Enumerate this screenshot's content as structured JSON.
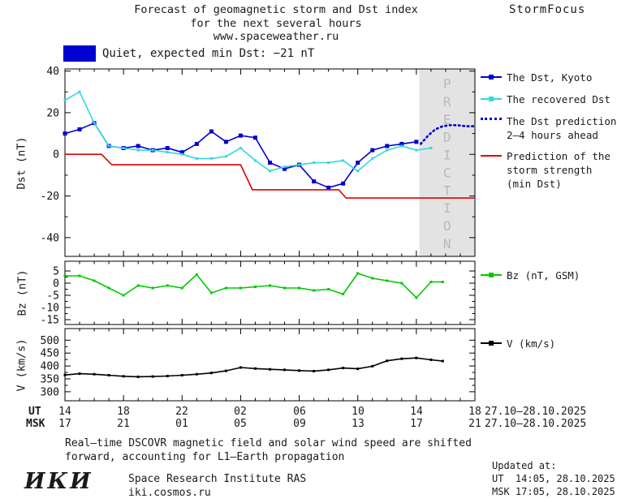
{
  "header": {
    "title_line1": "Forecast of geomagnetic storm and Dst index",
    "title_line2": "for the next several hours",
    "title_line3": "www.spaceweather.ru",
    "brand": "StormFocus"
  },
  "status": {
    "label": "Quiet, expected min Dst: −21 nT",
    "swatch_color": "#0000d0"
  },
  "legend": {
    "dst_kyoto": "The Dst, Kyoto",
    "recovered": "The recovered Dst",
    "prediction_l1": "The Dst prediction",
    "prediction_l2": "2–4 hours ahead",
    "storm_l1": "Prediction of the",
    "storm_l2": "storm strength",
    "storm_l3": "(min Dst)",
    "bz": "Bz (nT, GSM)",
    "v": "V (km/s)"
  },
  "axes": {
    "ut_label": "UT",
    "msk_label": "MSK",
    "ut_ticks": [
      "14",
      "18",
      "22",
      "02",
      "06",
      "10",
      "14",
      "18"
    ],
    "msk_ticks": [
      "17",
      "21",
      "01",
      "05",
      "09",
      "13",
      "17",
      "21"
    ],
    "ut_daterange": "27.10–28.10.2025",
    "msk_daterange": "27.10–28.10.2025",
    "dst_ylabel": "Dst (nT)",
    "bz_ylabel": "Bz (nT)",
    "v_ylabel": "V (km/s)",
    "prediction_watermark": "PREDICTION"
  },
  "footer": {
    "note_line1": "Real–time DSCOVR magnetic field and solar wind speed are shifted",
    "note_line2": "forward, accounting for L1–Earth propagation",
    "updated_label": "Updated at:",
    "updated_ut": "UT  14:05, 28.10.2025",
    "updated_msk": "MSK 17:05, 28.10.2025",
    "logo": "ИКИ",
    "institute": "Space Research Institute RAS",
    "site": "iki.cosmos.ru"
  },
  "chart_data": [
    {
      "type": "line",
      "panel": "dst",
      "ylabel": "Dst (nT)",
      "x_unit": "hours since 27.10.2025 14:00 UT",
      "xlim": [
        0,
        28
      ],
      "ylim": [
        -49,
        41
      ],
      "yticks": [
        40,
        20,
        0,
        -20,
        -40
      ],
      "xticks_hours": [
        0,
        4,
        8,
        12,
        16,
        20,
        24,
        28
      ],
      "prediction_region_x": [
        24.2,
        28
      ],
      "series": [
        {
          "id": "dst-kyoto",
          "name": "The Dst, Kyoto",
          "color": "#0000d0",
          "marker": "square",
          "marker_size": 5,
          "x": [
            0,
            1,
            2,
            3,
            4,
            5,
            6,
            7,
            8,
            9,
            10,
            11,
            12,
            13,
            14,
            15,
            16,
            17,
            18,
            19,
            20,
            21,
            22,
            23,
            24
          ],
          "values": [
            10,
            12,
            15,
            4,
            3,
            4,
            2,
            3,
            1,
            5,
            11,
            6,
            9,
            8,
            -4,
            -7,
            -5,
            -13,
            -16,
            -14,
            -4,
            2,
            4,
            5,
            6
          ]
        },
        {
          "id": "dst-recovered",
          "name": "The recovered Dst",
          "color": "#35d5e5",
          "marker": "square",
          "marker_size": 3,
          "x": [
            0,
            1,
            2,
            3,
            4,
            5,
            6,
            7,
            8,
            9,
            10,
            11,
            12,
            13,
            14,
            15,
            16,
            17,
            18,
            19,
            20,
            21,
            22,
            23,
            24,
            25
          ],
          "values": [
            26,
            30,
            15,
            4,
            3,
            2,
            2,
            1,
            0,
            -2,
            -2,
            -1,
            3,
            -3,
            -8,
            -6,
            -5,
            -4,
            -4,
            -3,
            -8,
            -2,
            2,
            4,
            2,
            3
          ]
        },
        {
          "id": "dst-prediction",
          "name": "The Dst prediction 2–4 hours ahead",
          "color": "#0000d0",
          "style": "dotted",
          "x": [
            24.3,
            24.8,
            25.3,
            25.8,
            26.3,
            26.8,
            27.4,
            28
          ],
          "values": [
            5,
            9,
            12,
            13.5,
            14,
            14,
            13.5,
            13.5
          ]
        },
        {
          "id": "storm-strength",
          "name": "Prediction of the storm strength (min Dst)",
          "color": "#e00000",
          "x": [
            0,
            2.5,
            3.2,
            12,
            12.8,
            18.7,
            19.2,
            28
          ],
          "values": [
            0,
            0,
            -5,
            -5,
            -17,
            -17,
            -21,
            -21
          ]
        }
      ]
    },
    {
      "type": "line",
      "panel": "bz",
      "ylabel": "Bz (nT)",
      "xlim": [
        0,
        28
      ],
      "ylim": [
        -17,
        9
      ],
      "yticks": [
        5,
        0,
        -5,
        -10,
        -15
      ],
      "series": [
        {
          "id": "bz-gsm",
          "name": "Bz (nT, GSM)",
          "color": "#00c800",
          "marker": "square",
          "marker_size": 3,
          "x": [
            0,
            1,
            2,
            3,
            4,
            5,
            6,
            7,
            8,
            9,
            10,
            11,
            12,
            13,
            14,
            15,
            16,
            17,
            18,
            19,
            20,
            21,
            22,
            23,
            24,
            25,
            25.8
          ],
          "values": [
            3,
            3,
            1,
            -2,
            -5,
            -1,
            -2,
            -1,
            -2,
            3.5,
            -4,
            -2,
            -2,
            -1.5,
            -1,
            -2,
            -2,
            -3,
            -2.5,
            -4.5,
            4,
            2,
            1,
            0,
            -6,
            0.5,
            0.5
          ]
        }
      ]
    },
    {
      "type": "line",
      "panel": "v",
      "ylabel": "V (km/s)",
      "xlim": [
        0,
        28
      ],
      "ylim": [
        265,
        545
      ],
      "yticks": [
        500,
        450,
        400,
        350,
        300
      ],
      "series": [
        {
          "id": "solar-wind-speed",
          "name": "V (km/s)",
          "color": "#000000",
          "marker": "square",
          "marker_size": 3,
          "x": [
            0,
            1,
            2,
            3,
            4,
            5,
            6,
            7,
            8,
            9,
            10,
            11,
            12,
            13,
            14,
            15,
            16,
            17,
            18,
            19,
            20,
            21,
            22,
            23,
            24,
            25,
            25.8
          ],
          "values": [
            365,
            370,
            368,
            364,
            360,
            358,
            359,
            361,
            364,
            368,
            373,
            381,
            394,
            390,
            387,
            385,
            382,
            380,
            385,
            392,
            389,
            399,
            420,
            428,
            431,
            424,
            419
          ]
        }
      ]
    }
  ]
}
